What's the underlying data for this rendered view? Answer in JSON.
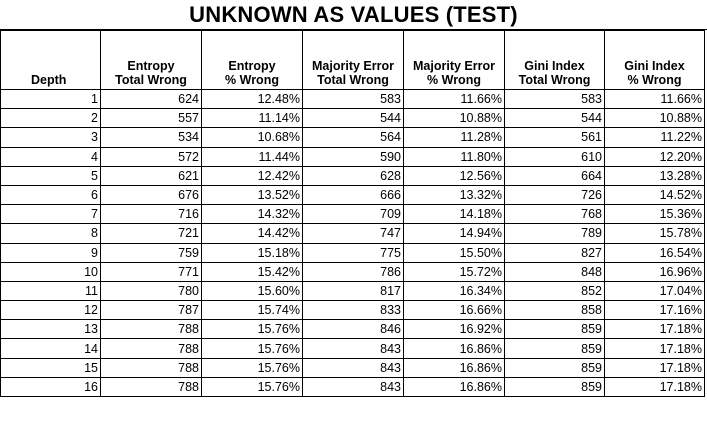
{
  "title": "UNKNOWN AS VALUES (TEST)",
  "columns": [
    {
      "line1": "Depth",
      "line2": ""
    },
    {
      "line1": "Entropy",
      "line2": "Total Wrong"
    },
    {
      "line1": "Entropy",
      "line2": "% Wrong"
    },
    {
      "line1": "Majority Error",
      "line2": "Total Wrong"
    },
    {
      "line1": "Majority Error",
      "line2": "% Wrong"
    },
    {
      "line1": "Gini Index",
      "line2": "Total Wrong"
    },
    {
      "line1": "Gini Index",
      "line2": "% Wrong"
    }
  ],
  "rows": [
    [
      "1",
      "624",
      "12.48%",
      "583",
      "11.66%",
      "583",
      "11.66%"
    ],
    [
      "2",
      "557",
      "11.14%",
      "544",
      "10.88%",
      "544",
      "10.88%"
    ],
    [
      "3",
      "534",
      "10.68%",
      "564",
      "11.28%",
      "561",
      "11.22%"
    ],
    [
      "4",
      "572",
      "11.44%",
      "590",
      "11.80%",
      "610",
      "12.20%"
    ],
    [
      "5",
      "621",
      "12.42%",
      "628",
      "12.56%",
      "664",
      "13.28%"
    ],
    [
      "6",
      "676",
      "13.52%",
      "666",
      "13.32%",
      "726",
      "14.52%"
    ],
    [
      "7",
      "716",
      "14.32%",
      "709",
      "14.18%",
      "768",
      "15.36%"
    ],
    [
      "8",
      "721",
      "14.42%",
      "747",
      "14.94%",
      "789",
      "15.78%"
    ],
    [
      "9",
      "759",
      "15.18%",
      "775",
      "15.50%",
      "827",
      "16.54%"
    ],
    [
      "10",
      "771",
      "15.42%",
      "786",
      "15.72%",
      "848",
      "16.96%"
    ],
    [
      "11",
      "780",
      "15.60%",
      "817",
      "16.34%",
      "852",
      "17.04%"
    ],
    [
      "12",
      "787",
      "15.74%",
      "833",
      "16.66%",
      "858",
      "17.16%"
    ],
    [
      "13",
      "788",
      "15.76%",
      "846",
      "16.92%",
      "859",
      "17.18%"
    ],
    [
      "14",
      "788",
      "15.76%",
      "843",
      "16.86%",
      "859",
      "17.18%"
    ],
    [
      "15",
      "788",
      "15.76%",
      "843",
      "16.86%",
      "859",
      "17.18%"
    ],
    [
      "16",
      "788",
      "15.76%",
      "843",
      "16.86%",
      "859",
      "17.18%"
    ]
  ]
}
